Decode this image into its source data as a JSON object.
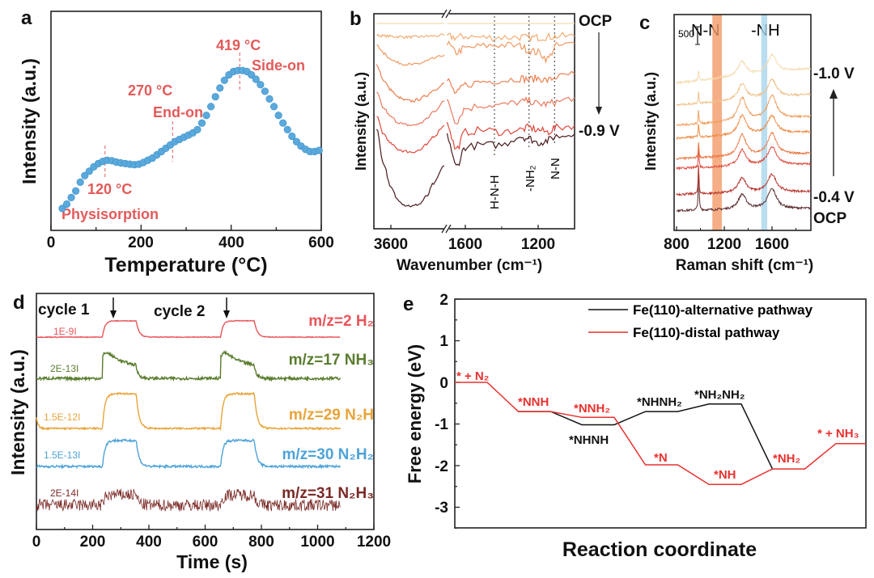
{
  "chart_data": [
    {
      "panel": "a",
      "type": "scatter",
      "xlabel": "Temperature (°C)",
      "ylabel": "Intensity (a.u.)",
      "xlim": [
        0,
        600
      ],
      "ylim": [
        0,
        1
      ],
      "xticks": [
        "0",
        "200",
        "400",
        "600"
      ],
      "color": "#5aa9dc",
      "x": [
        25,
        35,
        45,
        55,
        65,
        75,
        85,
        95,
        105,
        115,
        125,
        135,
        145,
        155,
        165,
        175,
        185,
        195,
        205,
        215,
        225,
        235,
        245,
        255,
        265,
        275,
        285,
        295,
        305,
        315,
        325,
        335,
        345,
        355,
        365,
        375,
        385,
        395,
        405,
        415,
        425,
        435,
        445,
        455,
        465,
        475,
        485,
        495,
        505,
        515,
        525,
        535,
        545,
        555,
        565,
        575,
        585,
        595
      ],
      "y": [
        0.1,
        0.12,
        0.15,
        0.18,
        0.22,
        0.25,
        0.27,
        0.29,
        0.305,
        0.315,
        0.32,
        0.318,
        0.312,
        0.308,
        0.305,
        0.302,
        0.3,
        0.302,
        0.31,
        0.32,
        0.33,
        0.345,
        0.36,
        0.375,
        0.39,
        0.405,
        0.415,
        0.425,
        0.435,
        0.445,
        0.46,
        0.49,
        0.525,
        0.565,
        0.61,
        0.65,
        0.685,
        0.71,
        0.725,
        0.73,
        0.73,
        0.725,
        0.71,
        0.69,
        0.665,
        0.635,
        0.6,
        0.565,
        0.525,
        0.49,
        0.46,
        0.43,
        0.405,
        0.385,
        0.37,
        0.36,
        0.36,
        0.365
      ],
      "annotations": [
        {
          "x": 120,
          "temp": "120 °C",
          "label": "Physisorption"
        },
        {
          "x": 270,
          "temp": "270 °C",
          "label": "End-on"
        },
        {
          "x": 419,
          "temp": "419 °C",
          "label": "Side-on"
        }
      ],
      "annotation_color": "#e35a5a"
    },
    {
      "panel": "b",
      "type": "line",
      "xlabel": "Wavenumber (cm⁻¹)",
      "ylabel": "Intensity (a.u.)",
      "xticks": [
        "3600",
        "1600",
        "1200"
      ],
      "x_left": [
        3800,
        3700,
        3600,
        3500,
        3400,
        3300,
        3200,
        3100,
        3000,
        2850
      ],
      "x_right": [
        1700,
        1650,
        1600,
        1500,
        1400,
        1300,
        1250,
        1200,
        1150,
        1100,
        1000
      ],
      "ylim": [
        0,
        10
      ],
      "series": [
        {
          "label": "OCP",
          "color": "#f3dcae",
          "left": [
            9.55,
            9.55,
            9.55,
            9.55,
            9.55,
            9.55,
            9.55,
            9.55,
            9.55,
            9.55
          ],
          "right": [
            9.55,
            9.55,
            9.55,
            9.55,
            9.55,
            9.55,
            9.55,
            9.55,
            9.55,
            9.55,
            9.55
          ]
        },
        {
          "label": "",
          "color": "#f2ad74",
          "left": [
            9.0,
            8.97,
            8.95,
            8.93,
            8.92,
            8.92,
            8.93,
            8.95,
            8.97,
            9.0
          ],
          "right": [
            8.95,
            8.9,
            8.95,
            8.9,
            8.9,
            8.92,
            8.88,
            8.9,
            8.92,
            8.95,
            8.95
          ]
        },
        {
          "label": "",
          "color": "#f09a62",
          "left": [
            8.57,
            8.15,
            7.9,
            7.72,
            7.65,
            7.63,
            7.68,
            7.8,
            7.92,
            8.08
          ],
          "right": [
            8.6,
            8.2,
            8.4,
            8.5,
            8.55,
            8.5,
            8.3,
            8.2,
            7.9,
            8.5,
            8.6
          ]
        },
        {
          "label": "",
          "color": "#ec8050",
          "left": [
            7.63,
            6.9,
            6.45,
            6.12,
            5.98,
            5.94,
            6.02,
            6.2,
            6.45,
            6.77
          ],
          "right": [
            6.9,
            6.3,
            6.7,
            6.85,
            6.9,
            7.0,
            6.95,
            7.0,
            6.9,
            7.05,
            7.2
          ]
        },
        {
          "label": "",
          "color": "#ea7a5e",
          "left": [
            6.32,
            5.6,
            5.2,
            4.95,
            4.84,
            4.81,
            4.88,
            5.1,
            5.45,
            5.94
          ],
          "right": [
            5.9,
            5.0,
            5.6,
            5.75,
            5.75,
            5.9,
            5.95,
            5.8,
            5.8,
            5.9,
            6.1
          ]
        },
        {
          "label": "",
          "color": "#e0483a",
          "left": [
            5.19,
            4.4,
            3.95,
            3.7,
            3.6,
            3.57,
            3.65,
            3.9,
            4.3,
            4.81
          ],
          "right": [
            4.9,
            3.7,
            4.5,
            4.6,
            4.5,
            4.6,
            4.7,
            4.6,
            4.5,
            4.7,
            4.8
          ]
        },
        {
          "label": "-0.9 V",
          "color": "#4a1c1e",
          "left": [
            4.62,
            3.0,
            1.9,
            1.35,
            1.1,
            1.05,
            1.15,
            1.5,
            2.1,
            2.93
          ],
          "right": [
            4.3,
            2.9,
            3.8,
            3.9,
            3.9,
            4.3,
            4.2,
            4.0,
            4.1,
            4.3,
            4.4
          ]
        }
      ],
      "markers": [
        {
          "x": 1440,
          "label": "H-N-H"
        },
        {
          "x": 1250,
          "label": "-NH₂"
        },
        {
          "x": 1110,
          "label": "N-N"
        }
      ]
    },
    {
      "panel": "c",
      "type": "line",
      "xlabel": "Raman shift (cm⁻¹)",
      "ylabel": "Intensity (a.u.)",
      "xlim": [
        800,
        1925
      ],
      "ylim": [
        0,
        6100
      ],
      "xticks": [
        "800",
        "1200",
        "1600"
      ],
      "scale_bar": "500",
      "bands": [
        {
          "label": "N-N",
          "from": 1100,
          "to": 1180,
          "color": "#f29a68"
        },
        {
          "label": "-NH",
          "from": 1510,
          "to": 1560,
          "color": "#a9d4ec"
        }
      ],
      "series": [
        {
          "label": "OCP",
          "color": "#5a2a2c",
          "offset": 614,
          "slope": 60,
          "spike_985": 1300,
          "peak_1350": 420,
          "peak_1600": 560
        },
        {
          "label": "-0.4 V",
          "color": "#b8372f",
          "offset": 1090,
          "slope": 80,
          "spike_985": 850,
          "peak_1350": 420,
          "peak_1600": 500
        },
        {
          "label": "",
          "color": "#df4a3c",
          "offset": 1860,
          "slope": 120,
          "spike_985": 600,
          "peak_1350": 450,
          "peak_1600": 520
        },
        {
          "label": "",
          "color": "#ec7a48",
          "offset": 2160,
          "slope": 150,
          "spike_985": 450,
          "peak_1350": 600,
          "peak_1600": 600
        },
        {
          "label": "",
          "color": "#ef8c46",
          "offset": 2770,
          "slope": 180,
          "spike_985": 400,
          "peak_1350": 550,
          "peak_1600": 500
        },
        {
          "label": "",
          "color": "#f0a060",
          "offset": 3200,
          "slope": 250,
          "spike_985": 380,
          "peak_1350": 650,
          "peak_1600": 650
        },
        {
          "label": "",
          "color": "#f0c28c",
          "offset": 3820,
          "slope": 300,
          "spike_985": 350,
          "peak_1350": 450,
          "peak_1600": 500
        },
        {
          "label": "-1.0 V",
          "color": "#f5dcb0",
          "offset": 4545,
          "slope": 400,
          "spike_985": 300,
          "peak_1350": 400,
          "peak_1600": 500
        }
      ]
    },
    {
      "panel": "d",
      "type": "line",
      "xlabel": "Time (s)",
      "ylabel": "Intensity (a.u.)",
      "xlim": [
        0,
        1200
      ],
      "ylim": [
        0,
        100
      ],
      "xticks": [
        "0",
        "200",
        "400",
        "600",
        "800",
        "1000",
        "1200"
      ],
      "t_end": 1080,
      "cycles": [
        {
          "label": "cycle 1",
          "on": 235,
          "off": 355
        },
        {
          "label": "cycle 2",
          "on": 655,
          "off": 775
        }
      ],
      "series": [
        {
          "label": "m/z=2 H₂",
          "scale": "1E-9I",
          "color": "#e8555a",
          "baseline": 81.5,
          "plateau": 88.4,
          "noise": 0.15,
          "spike": 0
        },
        {
          "label": "m/z=17 NH₃",
          "scale": "2E-13I",
          "color": "#5a7d2e",
          "baseline": 64,
          "plateau": 68.5,
          "noise": 0.6,
          "spike": 9
        },
        {
          "label": "m/z=29 N₂H",
          "scale": "1.5E-12I",
          "color": "#e8a43a",
          "baseline": 42.8,
          "plateau": 57.5,
          "noise": 0.35,
          "spike": 0
        },
        {
          "label": "m/z=30 N₂H₂",
          "scale": "1.5E-13I",
          "color": "#4da3d9",
          "baseline": 26.7,
          "plateau": 37.7,
          "noise": 0.5,
          "spike": 0
        },
        {
          "label": "m/z=31 N₂H₃",
          "scale": "2E-14I",
          "color": "#7a2a26",
          "baseline": 10.3,
          "plateau": 14.7,
          "noise": 2.6,
          "spike": 0
        }
      ]
    },
    {
      "panel": "e",
      "type": "line",
      "xlabel": "Reaction coordinate",
      "ylabel": "Free energy (eV)",
      "ylim": [
        -3.5,
        2
      ],
      "yticks": [
        "2",
        "1",
        "0",
        "-1",
        "-2",
        "-3"
      ],
      "legend_position": "top-right",
      "series": [
        {
          "name": "Fe(110)-alternative pathway",
          "color": "#111111",
          "steps": [
            {
              "i": 1,
              "g": -0.7
            },
            {
              "i": 2,
              "g": -1.02,
              "label": "*NHNH"
            },
            {
              "i": 3,
              "g": -0.7,
              "label": "*NHNH₂"
            },
            {
              "i": 4,
              "g": -0.52,
              "label": "*NH₂NH₂"
            },
            {
              "i": 5,
              "g": -2.08
            }
          ]
        },
        {
          "name": "Fe(110)-distal pathway",
          "color": "#e8312f",
          "steps": [
            {
              "i": 0,
              "g": 0,
              "label": "* + N₂"
            },
            {
              "i": 1,
              "g": -0.7,
              "label": "*NNH"
            },
            {
              "i": 2,
              "g": -0.84,
              "label": "*NNH₂"
            },
            {
              "i": 3,
              "g": -1.98,
              "label": "*N"
            },
            {
              "i": 4,
              "g": -2.45,
              "label": "*NH"
            },
            {
              "i": 5,
              "g": -2.08,
              "label": "*NH₂"
            },
            {
              "i": 6,
              "g": -1.47,
              "label": "* + NH₃"
            }
          ]
        }
      ]
    }
  ],
  "panel_labels": [
    "a",
    "b",
    "c",
    "d",
    "e"
  ]
}
